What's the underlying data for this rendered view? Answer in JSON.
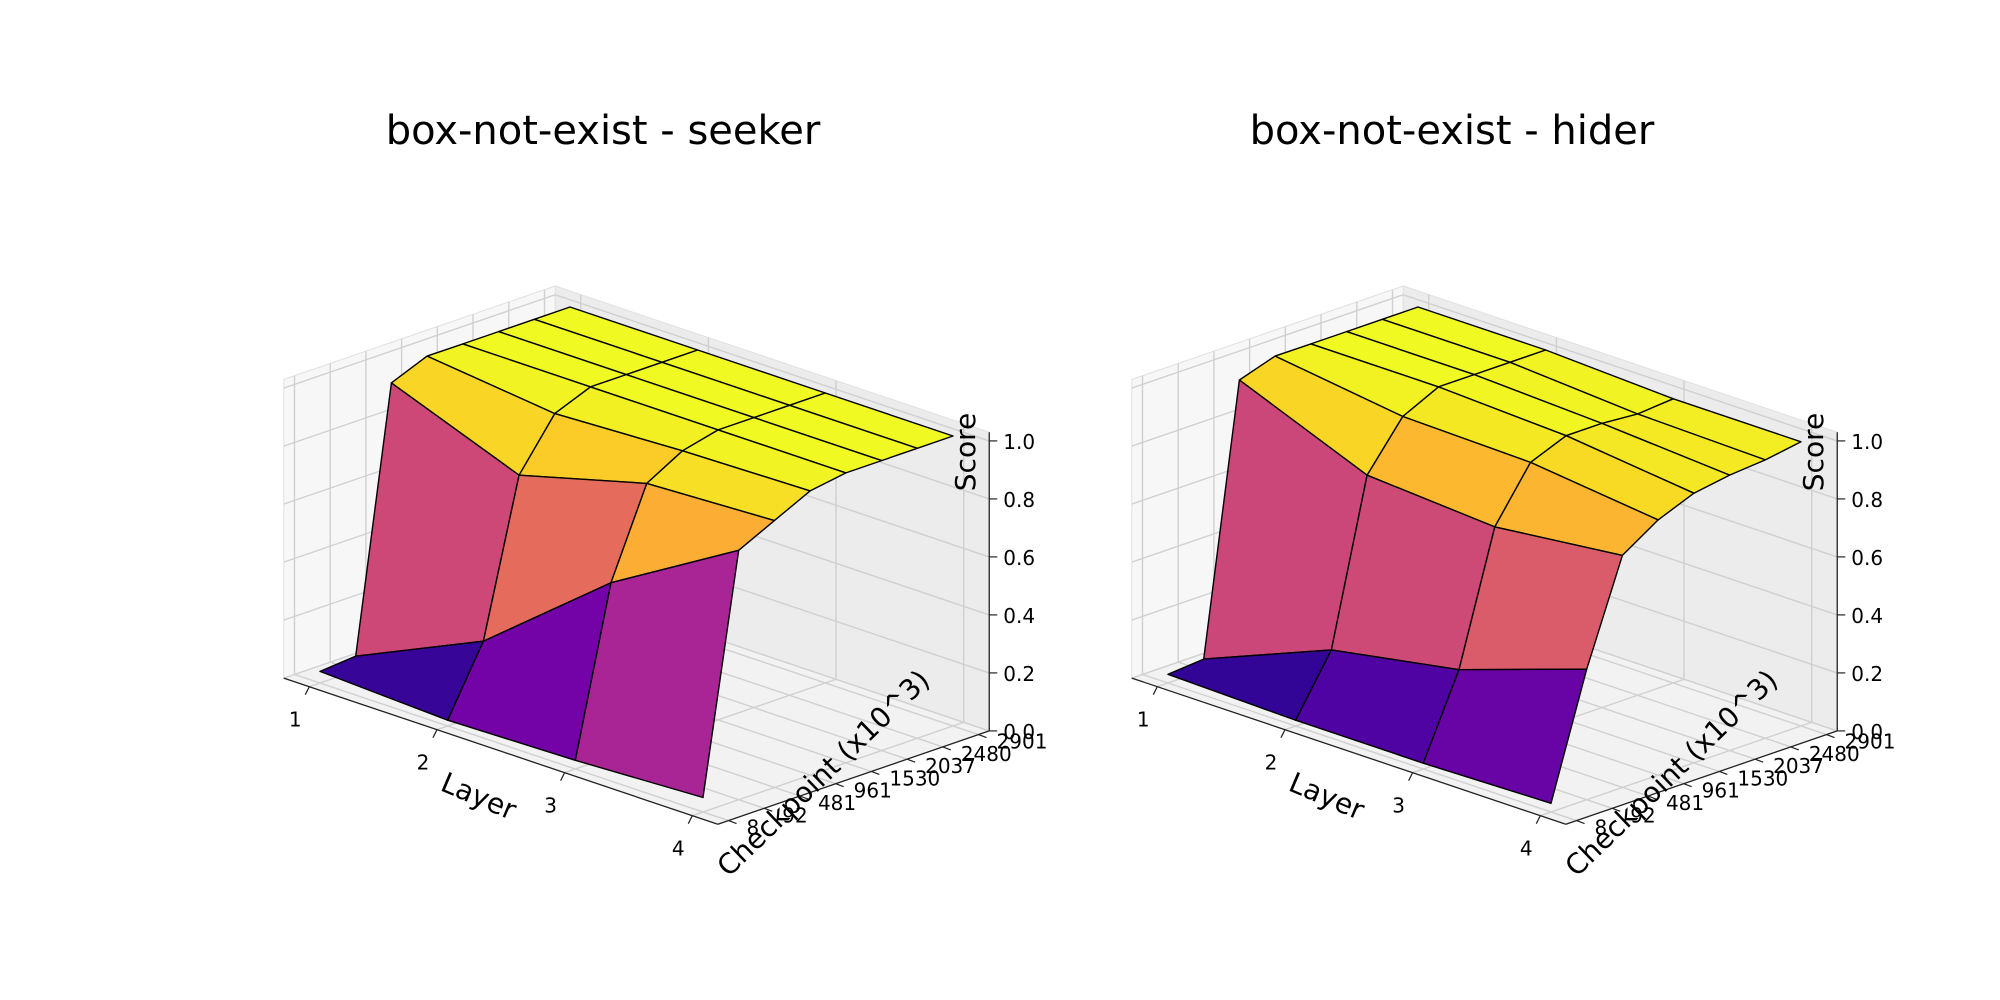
{
  "chart_data": [
    {
      "type": "surface3d",
      "title": "box-not-exist - seeker",
      "xlabel": "Layer",
      "ylabel": "Checkpoint (x10^3)",
      "zlabel": "Score",
      "x": [
        1,
        2,
        3,
        4
      ],
      "x_tick_labels": [
        "1",
        "2",
        "3",
        "4"
      ],
      "y_tick_labels": [
        "8",
        "92",
        "481",
        "961",
        "1530",
        "2037",
        "2480",
        "2901"
      ],
      "z_tick_labels": [
        "0.0",
        "0.2",
        "0.4",
        "0.6",
        "0.8",
        "1.0"
      ],
      "zlim": [
        0,
        1
      ],
      "z": [
        [
          0.04,
          0.05,
          0.95,
          1.0,
          1.0,
          1.0,
          1.0,
          1.0
        ],
        [
          0.02,
          0.25,
          0.78,
          0.95,
          1.0,
          1.0,
          1.0,
          1.0
        ],
        [
          0.03,
          0.6,
          0.9,
          0.97,
          1.0,
          1.0,
          1.0,
          1.0
        ],
        [
          0.05,
          0.86,
          0.92,
          0.98,
          1.0,
          1.0,
          1.0,
          1.0
        ]
      ],
      "colormap": "plasma",
      "grid": true
    },
    {
      "type": "surface3d",
      "title": "box-not-exist - hider",
      "xlabel": "Layer",
      "ylabel": "Checkpoint (x10^3)",
      "zlabel": "Score",
      "x": [
        1,
        2,
        3,
        4
      ],
      "x_tick_labels": [
        "1",
        "2",
        "3",
        "4"
      ],
      "y_tick_labels": [
        "8",
        "92",
        "481",
        "961",
        "1530",
        "2037",
        "2480",
        "2901"
      ],
      "z_tick_labels": [
        "0.0",
        "0.2",
        "0.4",
        "0.6",
        "0.8",
        "1.0"
      ],
      "zlim": [
        0,
        1
      ],
      "z": [
        [
          0.03,
          0.04,
          0.96,
          1.0,
          1.0,
          1.0,
          1.0,
          1.0
        ],
        [
          0.02,
          0.22,
          0.78,
          0.94,
          1.0,
          1.0,
          1.0,
          1.0
        ],
        [
          0.02,
          0.3,
          0.75,
          0.93,
          0.98,
          0.98,
          0.97,
          0.98
        ],
        [
          0.03,
          0.45,
          0.8,
          0.88,
          0.93,
          0.95,
          0.96,
          0.98
        ]
      ],
      "colormap": "plasma",
      "grid": true
    }
  ]
}
